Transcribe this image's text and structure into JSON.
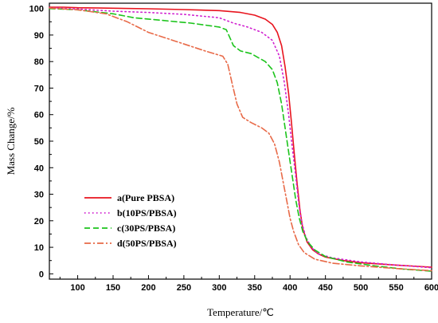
{
  "chart_data": {
    "type": "line",
    "xlabel": "Temperature/℃",
    "ylabel": "Mass Change/%",
    "xlim": [
      60,
      600
    ],
    "ylim": [
      -2,
      102
    ],
    "xticks": [
      100,
      150,
      200,
      250,
      300,
      350,
      400,
      450,
      500,
      550,
      600
    ],
    "yticks": [
      0,
      10,
      20,
      30,
      40,
      50,
      60,
      70,
      80,
      90,
      100
    ],
    "legend_position": "bottom-left",
    "grid": false,
    "series": [
      {
        "name": "a(Pure PBSA)",
        "color": "#e8141e",
        "dash": "solid",
        "points": [
          [
            60,
            100.5
          ],
          [
            80,
            100.5
          ],
          [
            100,
            100.3
          ],
          [
            150,
            100.1
          ],
          [
            200,
            99.9
          ],
          [
            250,
            99.6
          ],
          [
            300,
            99.2
          ],
          [
            330,
            98.5
          ],
          [
            350,
            97.5
          ],
          [
            365,
            96
          ],
          [
            375,
            94
          ],
          [
            382,
            91
          ],
          [
            388,
            86
          ],
          [
            393,
            78
          ],
          [
            398,
            68
          ],
          [
            402,
            57
          ],
          [
            406,
            45
          ],
          [
            410,
            34
          ],
          [
            414,
            24
          ],
          [
            418,
            17
          ],
          [
            424,
            12
          ],
          [
            432,
            9
          ],
          [
            440,
            7.5
          ],
          [
            450,
            6.3
          ],
          [
            475,
            5
          ],
          [
            500,
            4.2
          ],
          [
            550,
            3.3
          ],
          [
            600,
            2.5
          ]
        ]
      },
      {
        "name": "b(10PS/PBSA)",
        "color": "#d020d0",
        "dash": "dotted",
        "points": [
          [
            60,
            100.3
          ],
          [
            100,
            99.8
          ],
          [
            150,
            99
          ],
          [
            200,
            98.5
          ],
          [
            250,
            97.8
          ],
          [
            300,
            96.5
          ],
          [
            320,
            94.5
          ],
          [
            340,
            93
          ],
          [
            360,
            91
          ],
          [
            375,
            88
          ],
          [
            385,
            82
          ],
          [
            392,
            72
          ],
          [
            398,
            60
          ],
          [
            403,
            48
          ],
          [
            408,
            37
          ],
          [
            412,
            27
          ],
          [
            416,
            20
          ],
          [
            422,
            14
          ],
          [
            430,
            10
          ],
          [
            440,
            7.5
          ],
          [
            460,
            6
          ],
          [
            500,
            4.5
          ],
          [
            550,
            3.3
          ],
          [
            600,
            2.3
          ]
        ]
      },
      {
        "name": "c(30PS/PBSA)",
        "color": "#1cc41c",
        "dash": "dashed",
        "points": [
          [
            60,
            100
          ],
          [
            100,
            99.5
          ],
          [
            150,
            98
          ],
          [
            180,
            96.5
          ],
          [
            220,
            95.5
          ],
          [
            260,
            94.5
          ],
          [
            300,
            93
          ],
          [
            310,
            92
          ],
          [
            320,
            86
          ],
          [
            330,
            84
          ],
          [
            345,
            83
          ],
          [
            365,
            80
          ],
          [
            375,
            77
          ],
          [
            382,
            72
          ],
          [
            388,
            64
          ],
          [
            393,
            55
          ],
          [
            398,
            46
          ],
          [
            403,
            37
          ],
          [
            408,
            28
          ],
          [
            413,
            21
          ],
          [
            418,
            16
          ],
          [
            425,
            12
          ],
          [
            435,
            9
          ],
          [
            450,
            6.5
          ],
          [
            480,
            4.5
          ],
          [
            520,
            3
          ],
          [
            560,
            1.8
          ],
          [
            600,
            1
          ]
        ]
      },
      {
        "name": "d(50PS/PBSA)",
        "color": "#e86a48",
        "dash": "dashdot",
        "points": [
          [
            60,
            100.2
          ],
          [
            100,
            99.5
          ],
          [
            140,
            98
          ],
          [
            170,
            95
          ],
          [
            200,
            91
          ],
          [
            240,
            87.5
          ],
          [
            280,
            84
          ],
          [
            305,
            82
          ],
          [
            312,
            79
          ],
          [
            318,
            72
          ],
          [
            325,
            64
          ],
          [
            333,
            59
          ],
          [
            345,
            57
          ],
          [
            360,
            55
          ],
          [
            370,
            53
          ],
          [
            378,
            49
          ],
          [
            385,
            42
          ],
          [
            390,
            35
          ],
          [
            395,
            28
          ],
          [
            400,
            21
          ],
          [
            405,
            16
          ],
          [
            412,
            11
          ],
          [
            420,
            8
          ],
          [
            435,
            5.5
          ],
          [
            460,
            4
          ],
          [
            500,
            3
          ],
          [
            550,
            2
          ],
          [
            600,
            1.2
          ]
        ]
      }
    ]
  }
}
